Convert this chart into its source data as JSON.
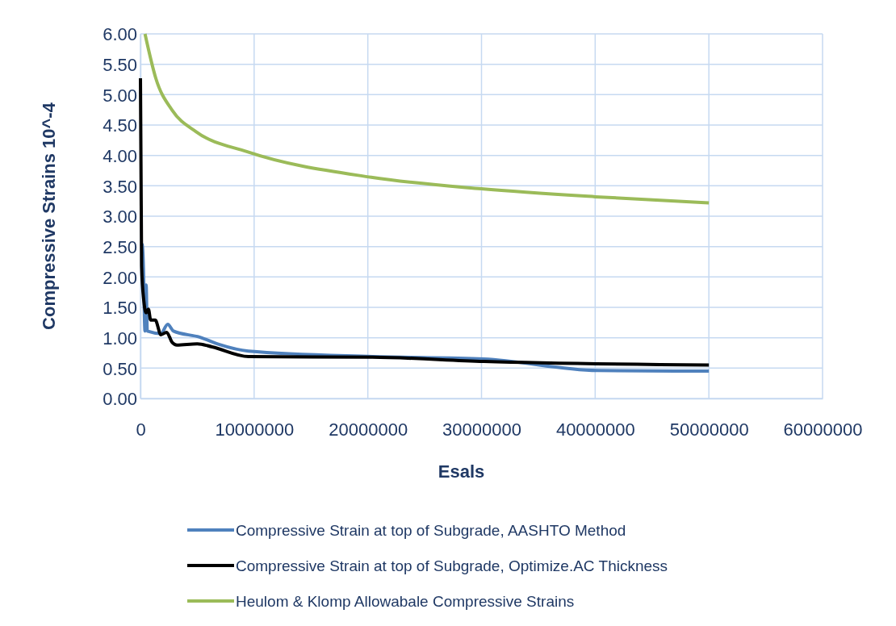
{
  "chart_data": {
    "type": "line",
    "xlabel": "Esals",
    "ylabel": "Compressive Strains  10^-4",
    "xlim": [
      0,
      60000000
    ],
    "xticks": [
      0,
      10000000,
      20000000,
      30000000,
      40000000,
      50000000,
      60000000
    ],
    "ylim": [
      0,
      6
    ],
    "yticks": [
      {
        "value": 0,
        "label": "0.00"
      },
      {
        "value": 0.5,
        "label": "0.50"
      },
      {
        "value": 1,
        "label": "1.00"
      },
      {
        "value": 1.5,
        "label": "1.50"
      },
      {
        "value": 2,
        "label": "2.00"
      },
      {
        "value": 2.5,
        "label": "2.50"
      },
      {
        "value": 3,
        "label": "3.00"
      },
      {
        "value": 3.5,
        "label": "3.50"
      },
      {
        "value": 4,
        "label": "4.00"
      },
      {
        "value": 4.5,
        "label": "4.50"
      },
      {
        "value": 5,
        "label": "5.00"
      },
      {
        "value": 5.5,
        "label": "5.50"
      },
      {
        "value": 6,
        "label": "6.00"
      }
    ],
    "grid": true,
    "legend": "bottom",
    "marker": "none",
    "series": [
      {
        "name": "Compressive Strain at top of Subgrade, AASHTO Method",
        "color": "#4f81bd",
        "x": [
          0,
          200000,
          400000,
          500000,
          600000,
          1800000,
          2400000,
          2900000,
          5200000,
          6900000,
          9500000,
          20400000,
          30200000,
          40200000,
          50000000
        ],
        "values": [
          2.54,
          2.53,
          1.11,
          1.87,
          1.11,
          1.07,
          1.22,
          1.11,
          1.01,
          0.89,
          0.78,
          0.69,
          0.65,
          0.46,
          0.45
        ]
      },
      {
        "name": "Compressive Strain at top of Subgrade, Optimize.AC Thickness",
        "color": "#000000",
        "x": [
          0,
          100000,
          300000,
          500000,
          700000,
          900000,
          1300000,
          1800000,
          2300000,
          2800000,
          3200000,
          5000000,
          6300000,
          9500000,
          20400000,
          30200000,
          50000000
        ],
        "values": [
          5.27,
          2.18,
          1.6,
          1.41,
          1.47,
          1.29,
          1.29,
          1.05,
          1.09,
          0.92,
          0.88,
          0.9,
          0.85,
          0.69,
          0.68,
          0.61,
          0.55
        ]
      },
      {
        "name": "Heulom & Klomp Allowabale Compressive Strains",
        "color": "#9bbb59",
        "x": [
          400000,
          1350000,
          2800000,
          4900000,
          9400000,
          20300000,
          30000000,
          40000000,
          50000000
        ],
        "values": [
          6.0,
          5.27,
          4.74,
          4.39,
          4.06,
          3.64,
          3.45,
          3.32,
          3.22
        ]
      }
    ]
  }
}
